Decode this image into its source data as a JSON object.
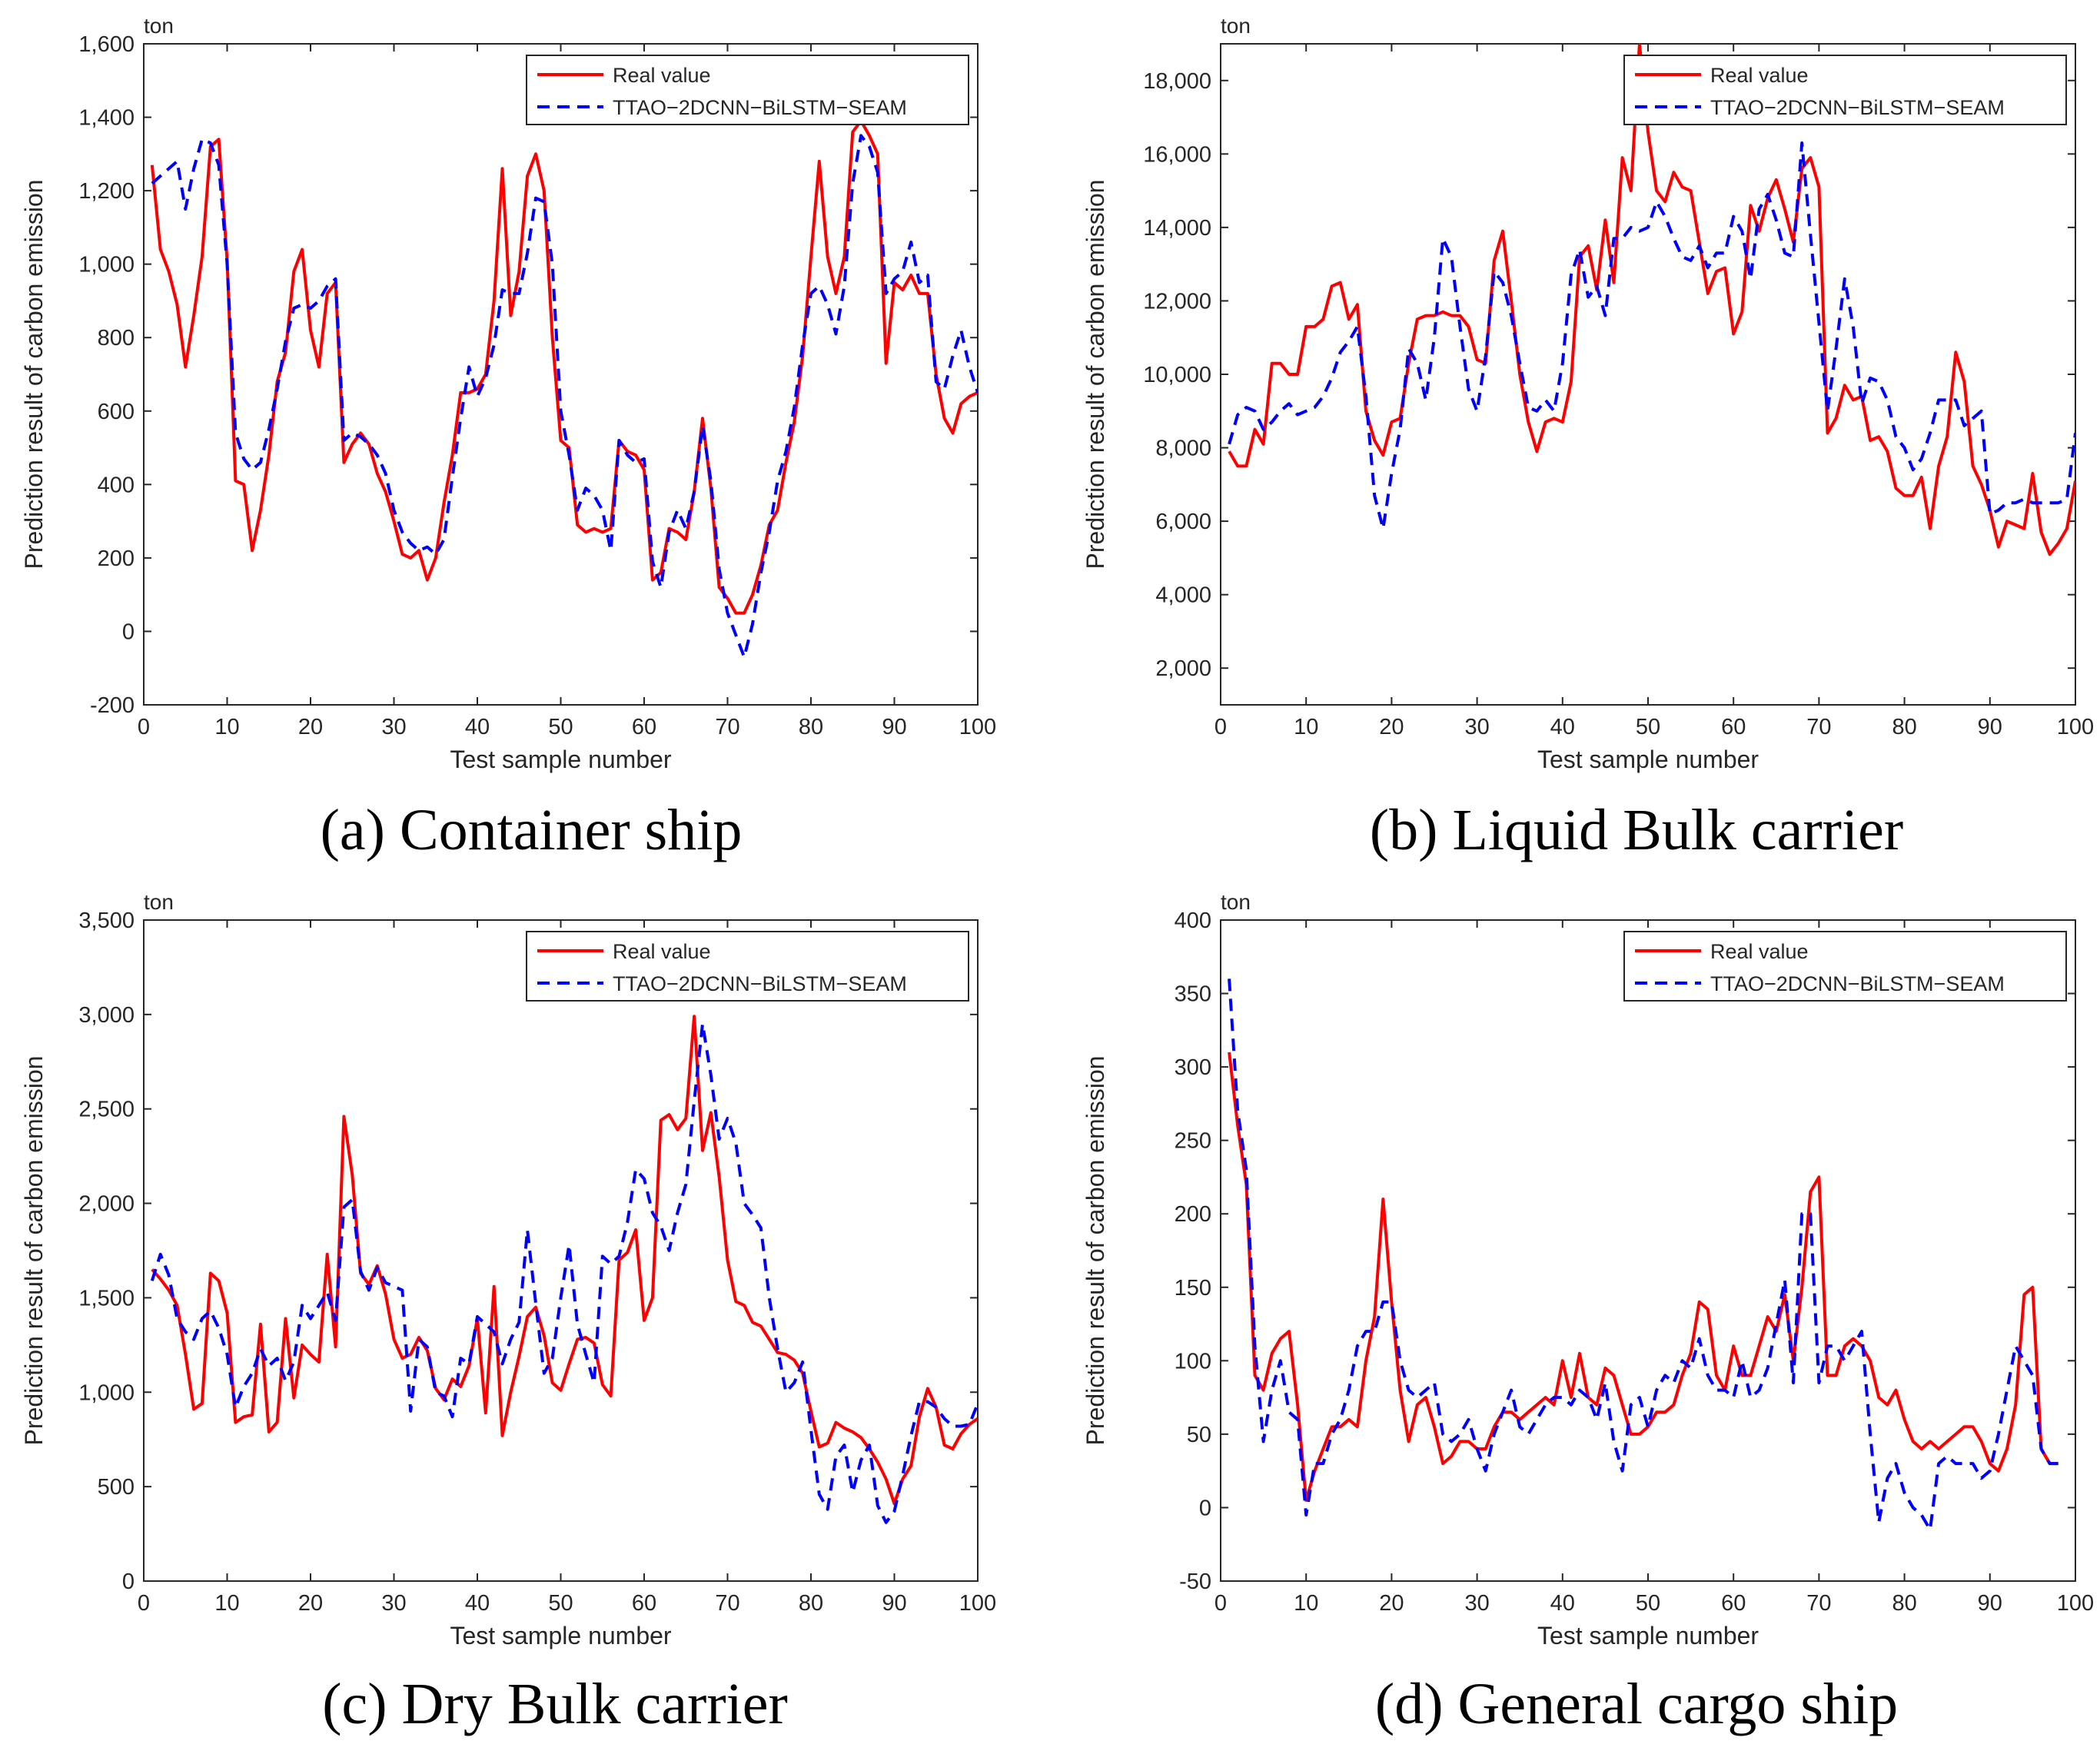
{
  "figure": {
    "captions": [
      "(a) Container ship",
      "(b) Liquid Bulk carrier",
      "(c) Dry Bulk carrier",
      "(d) General cargo ship"
    ]
  },
  "colors": {
    "real": "#ff0000",
    "pred": "#0000ff",
    "axis": "#262626"
  },
  "chart_data": [
    {
      "type": "line",
      "caption": "(a) Container ship",
      "unit": "ton",
      "xlabel": "Test sample number",
      "ylabel": "Prediction result of carbon emission",
      "xlim": [
        0,
        100
      ],
      "ylim": [
        -200,
        1600
      ],
      "xticks": [
        "0",
        "10",
        "20",
        "30",
        "40",
        "50",
        "60",
        "70",
        "80",
        "90",
        "100"
      ],
      "yticks": [
        "-200",
        "0",
        "200",
        "400",
        "600",
        "800",
        "1,000",
        "1,200",
        "1,400",
        "1,600"
      ],
      "ytick_values": [
        -200,
        0,
        200,
        400,
        600,
        800,
        1000,
        1200,
        1400,
        1600
      ],
      "legend_position": "top-right",
      "series": [
        {
          "name": "Real value",
          "style": "solid",
          "values": [
            1270,
            1040,
            980,
            890,
            720,
            860,
            1020,
            1320,
            1340,
            1010,
            410,
            400,
            220,
            330,
            480,
            680,
            760,
            980,
            1040,
            820,
            720,
            920,
            950,
            460,
            510,
            540,
            510,
            430,
            380,
            300,
            210,
            200,
            220,
            140,
            200,
            350,
            480,
            650,
            650,
            660,
            700,
            900,
            1260,
            860,
            980,
            1240,
            1300,
            1200,
            800,
            520,
            500,
            290,
            270,
            280,
            270,
            280,
            520,
            490,
            480,
            440,
            140,
            160,
            280,
            270,
            250,
            380,
            580,
            390,
            120,
            90,
            50,
            50,
            100,
            180,
            290,
            330,
            460,
            570,
            750,
            1020,
            1280,
            1020,
            920,
            1020,
            1360,
            1390,
            1350,
            1300,
            730,
            950,
            930,
            970,
            920,
            920,
            700,
            580,
            540,
            620,
            640,
            650
          ]
        },
        {
          "name": "TTAO−2DCNN−BiLSTM−SEAM",
          "style": "dashed",
          "values": [
            1220,
            1240,
            1260,
            1280,
            1150,
            1260,
            1340,
            1330,
            1270,
            1000,
            540,
            470,
            440,
            460,
            550,
            660,
            790,
            880,
            890,
            880,
            900,
            940,
            960,
            520,
            540,
            530,
            510,
            480,
            430,
            330,
            270,
            240,
            220,
            230,
            210,
            250,
            420,
            580,
            720,
            640,
            690,
            780,
            930,
            920,
            920,
            1030,
            1180,
            1170,
            1000,
            600,
            480,
            330,
            390,
            370,
            330,
            220,
            520,
            480,
            460,
            470,
            190,
            120,
            270,
            330,
            280,
            380,
            560,
            410,
            170,
            50,
            -10,
            -70,
            20,
            160,
            270,
            410,
            490,
            610,
            780,
            920,
            940,
            890,
            810,
            940,
            1220,
            1350,
            1320,
            1250,
            920,
            960,
            980,
            1060,
            950,
            970,
            680,
            660,
            750,
            820,
            720,
            650
          ]
        }
      ]
    },
    {
      "type": "line",
      "caption": "(b) Liquid Bulk carrier",
      "unit": "ton",
      "xlabel": "Test sample number",
      "ylabel": "Prediction result of carbon emission",
      "xlim": [
        0,
        100
      ],
      "ylim": [
        1000,
        19000
      ],
      "xticks": [
        "0",
        "10",
        "20",
        "30",
        "40",
        "50",
        "60",
        "70",
        "80",
        "90",
        "100"
      ],
      "yticks": [
        "2,000",
        "4,000",
        "6,000",
        "8,000",
        "10,000",
        "12,000",
        "14,000",
        "16,000",
        "18,000"
      ],
      "ytick_values": [
        2000,
        4000,
        6000,
        8000,
        10000,
        12000,
        14000,
        16000,
        18000
      ],
      "legend_position": "top-right",
      "series": [
        {
          "name": "Real value",
          "style": "solid",
          "values": [
            7900,
            7500,
            7500,
            8500,
            8100,
            10300,
            10300,
            10000,
            10000,
            11300,
            11300,
            11500,
            12400,
            12500,
            11500,
            11900,
            9000,
            8200,
            7800,
            8700,
            8800,
            10300,
            11500,
            11600,
            11600,
            11700,
            11600,
            11600,
            11300,
            10400,
            10300,
            13100,
            13900,
            12000,
            10000,
            8700,
            7900,
            8700,
            8800,
            8700,
            9800,
            13200,
            13500,
            12300,
            14200,
            12500,
            15900,
            15000,
            19000,
            16600,
            15000,
            14700,
            15500,
            15100,
            15000,
            13600,
            12200,
            12800,
            12900,
            11100,
            11700,
            14600,
            13900,
            14800,
            15300,
            14500,
            13600,
            15600,
            15900,
            15100,
            8400,
            8800,
            9700,
            9300,
            9400,
            8200,
            8300,
            7900,
            6900,
            6700,
            6700,
            7200,
            5800,
            7500,
            8300,
            10600,
            9800,
            7500,
            7000,
            6300,
            5300,
            6000,
            5900,
            5800,
            7300,
            5700,
            5100,
            5400,
            5800,
            7100
          ]
        },
        {
          "name": "TTAO−2DCNN−BiLSTM−SEAM",
          "style": "dashed",
          "values": [
            8100,
            8900,
            9100,
            9000,
            8500,
            8700,
            9000,
            9200,
            8900,
            9000,
            9100,
            9400,
            9900,
            10600,
            10900,
            11300,
            9400,
            6700,
            5800,
            7300,
            8500,
            10700,
            10300,
            9300,
            11000,
            13700,
            13200,
            11300,
            9600,
            9000,
            10500,
            12800,
            12500,
            11600,
            10300,
            9100,
            9000,
            9300,
            9000,
            10300,
            12700,
            13400,
            12100,
            12400,
            11600,
            13700,
            13700,
            14000,
            13900,
            14000,
            14700,
            14300,
            13700,
            13200,
            13100,
            13500,
            12900,
            13300,
            13300,
            14300,
            13900,
            12600,
            14500,
            14900,
            14200,
            13300,
            13200,
            16300,
            13800,
            11400,
            9000,
            10700,
            12600,
            11300,
            9200,
            9900,
            9800,
            9300,
            8300,
            8000,
            7400,
            7700,
            8400,
            9300,
            9300,
            9300,
            8600,
            8800,
            9000,
            6200,
            6300,
            6500,
            6500,
            6600,
            6500,
            6500,
            6500,
            6500,
            6600,
            8400
          ]
        }
      ]
    },
    {
      "type": "line",
      "caption": "(c) Dry Bulk carrier",
      "unit": "ton",
      "xlabel": "Test sample number",
      "ylabel": "Prediction result of carbon emission",
      "xlim": [
        0,
        100
      ],
      "ylim": [
        0,
        3500
      ],
      "xticks": [
        "0",
        "10",
        "20",
        "30",
        "40",
        "50",
        "60",
        "70",
        "80",
        "90",
        "100"
      ],
      "yticks": [
        "0",
        "500",
        "1,000",
        "1,500",
        "2,000",
        "2,500",
        "3,000",
        "3,500"
      ],
      "ytick_values": [
        0,
        500,
        1000,
        1500,
        2000,
        2500,
        3000,
        3500
      ],
      "legend_position": "top-right",
      "series": [
        {
          "name": "Real value",
          "style": "solid",
          "values": [
            1650,
            1600,
            1540,
            1460,
            1200,
            910,
            940,
            1630,
            1590,
            1420,
            840,
            870,
            880,
            1360,
            790,
            840,
            1390,
            970,
            1250,
            1200,
            1160,
            1730,
            1240,
            2460,
            2150,
            1630,
            1570,
            1670,
            1520,
            1280,
            1180,
            1200,
            1290,
            1220,
            1020,
            960,
            1070,
            1030,
            1140,
            1390,
            890,
            1560,
            770,
            1000,
            1190,
            1400,
            1450,
            1300,
            1050,
            1010,
            1150,
            1280,
            1290,
            1260,
            1040,
            980,
            1700,
            1740,
            1860,
            1380,
            1500,
            2440,
            2470,
            2390,
            2450,
            2990,
            2280,
            2480,
            2140,
            1700,
            1480,
            1460,
            1370,
            1350,
            1280,
            1210,
            1200,
            1170,
            1100,
            900,
            710,
            730,
            840,
            810,
            790,
            760,
            700,
            630,
            540,
            410,
            540,
            610,
            870,
            1020,
            920,
            720,
            700,
            780,
            830,
            860
          ]
        },
        {
          "name": "TTAO−2DCNN−BiLSTM−SEAM",
          "style": "dashed",
          "values": [
            1590,
            1730,
            1620,
            1390,
            1320,
            1280,
            1390,
            1430,
            1340,
            1200,
            920,
            1030,
            1100,
            1230,
            1140,
            1180,
            1060,
            1160,
            1460,
            1390,
            1460,
            1530,
            1380,
            1980,
            2020,
            1640,
            1540,
            1660,
            1580,
            1560,
            1540,
            900,
            1280,
            1240,
            1000,
            980,
            870,
            1180,
            1150,
            1400,
            1360,
            1320,
            1150,
            1280,
            1370,
            1860,
            1470,
            1100,
            1180,
            1500,
            1780,
            1360,
            1200,
            1050,
            1720,
            1680,
            1720,
            1900,
            2180,
            2130,
            1950,
            1880,
            1750,
            1950,
            2100,
            2540,
            2950,
            2680,
            2340,
            2450,
            2320,
            2000,
            1940,
            1870,
            1500,
            1230,
            1000,
            1050,
            1160,
            800,
            460,
            380,
            660,
            720,
            470,
            640,
            720,
            400,
            310,
            370,
            560,
            770,
            950,
            950,
            920,
            860,
            820,
            820,
            830,
            940
          ]
        }
      ]
    },
    {
      "type": "line",
      "caption": "(d) General cargo ship",
      "unit": "ton",
      "xlabel": "Test sample number",
      "ylabel": "Prediction result of carbon emission",
      "xlim": [
        0,
        100
      ],
      "ylim": [
        -50,
        400
      ],
      "xticks": [
        "0",
        "10",
        "20",
        "30",
        "40",
        "50",
        "60",
        "70",
        "80",
        "90",
        "100"
      ],
      "yticks": [
        "-50",
        "0",
        "50",
        "100",
        "150",
        "200",
        "250",
        "300",
        "350",
        "400"
      ],
      "ytick_values": [
        -50,
        0,
        50,
        100,
        150,
        200,
        250,
        300,
        350,
        400
      ],
      "legend_position": "top-right",
      "series": [
        {
          "name": "Real value",
          "style": "solid",
          "values": [
            310,
            260,
            220,
            90,
            80,
            105,
            115,
            120,
            70,
            5,
            25,
            40,
            55,
            55,
            60,
            55,
            100,
            130,
            210,
            140,
            80,
            45,
            70,
            75,
            55,
            30,
            35,
            45,
            45,
            40,
            40,
            55,
            65,
            65,
            60,
            65,
            70,
            75,
            70,
            100,
            75,
            105,
            75,
            70,
            95,
            90,
            70,
            50,
            50,
            55,
            65,
            65,
            70,
            90,
            105,
            140,
            135,
            90,
            80,
            110,
            90,
            90,
            110,
            130,
            120,
            145,
            100,
            150,
            215,
            225,
            90,
            90,
            110,
            115,
            110,
            100,
            75,
            70,
            80,
            60,
            45,
            40,
            45,
            40,
            45,
            50,
            55,
            55,
            45,
            30,
            25,
            40,
            70,
            145,
            150,
            40,
            30,
            30
          ]
        },
        {
          "name": "TTAO−2DCNN−BiLSTM−SEAM",
          "style": "dashed",
          "values": [
            360,
            270,
            230,
            110,
            45,
            80,
            100,
            65,
            60,
            -5,
            30,
            30,
            50,
            60,
            80,
            110,
            120,
            120,
            140,
            140,
            100,
            80,
            75,
            80,
            85,
            50,
            45,
            50,
            60,
            40,
            25,
            50,
            65,
            80,
            55,
            50,
            60,
            70,
            75,
            75,
            70,
            80,
            75,
            60,
            85,
            45,
            25,
            70,
            75,
            55,
            80,
            90,
            85,
            100,
            95,
            115,
            90,
            80,
            80,
            75,
            100,
            75,
            80,
            95,
            125,
            155,
            85,
            200,
            200,
            85,
            110,
            110,
            100,
            110,
            120,
            50,
            -10,
            20,
            30,
            10,
            0,
            -5,
            -15,
            30,
            35,
            30,
            30,
            30,
            20,
            25,
            50,
            80,
            110,
            100,
            90,
            40,
            30,
            30
          ]
        }
      ]
    }
  ]
}
